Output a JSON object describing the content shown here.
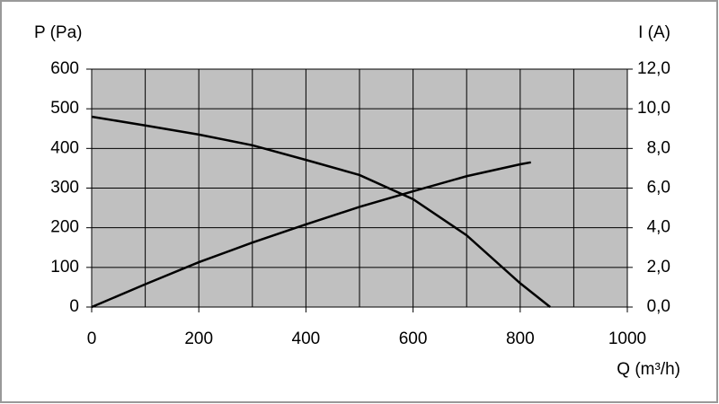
{
  "chart_data": {
    "type": "line",
    "ylabel": "P (Pa)",
    "y2label": "I (A)",
    "xlabel": "Q (m³/h)",
    "xlim": [
      0,
      1000
    ],
    "xticks": [
      0,
      200,
      400,
      600,
      800,
      1000
    ],
    "ylim": [
      0,
      600
    ],
    "yticks": [
      0,
      100,
      200,
      300,
      400,
      500,
      600
    ],
    "y2lim": [
      0,
      12
    ],
    "y2ticks": [
      {
        "value": 0,
        "label": "0,0"
      },
      {
        "value": 2,
        "label": "2,0"
      },
      {
        "value": 4,
        "label": "4,0"
      },
      {
        "value": 6,
        "label": "6,0"
      },
      {
        "value": 8,
        "label": "8,0"
      },
      {
        "value": 10,
        "label": "10,0"
      },
      {
        "value": 12,
        "label": "12,0"
      }
    ],
    "xgrid": [
      0,
      100,
      200,
      300,
      400,
      500,
      600,
      700,
      800,
      900,
      1000
    ],
    "grid": true,
    "plot_background": "#c0c0c0",
    "series": [
      {
        "color": "#000000",
        "x": [
          0,
          100,
          200,
          300,
          400,
          500,
          600,
          700,
          800,
          856
        ],
        "values": [
          480,
          458,
          435,
          408,
          371,
          333,
          272,
          181,
          60,
          0
        ]
      },
      {
        "color": "#000000",
        "axis": "y2",
        "x": [
          0,
          100,
          200,
          300,
          400,
          500,
          600,
          700,
          800,
          820
        ],
        "values": [
          0,
          1.15,
          2.26,
          3.25,
          4.17,
          5.05,
          5.84,
          6.6,
          7.2,
          7.3
        ]
      }
    ]
  }
}
